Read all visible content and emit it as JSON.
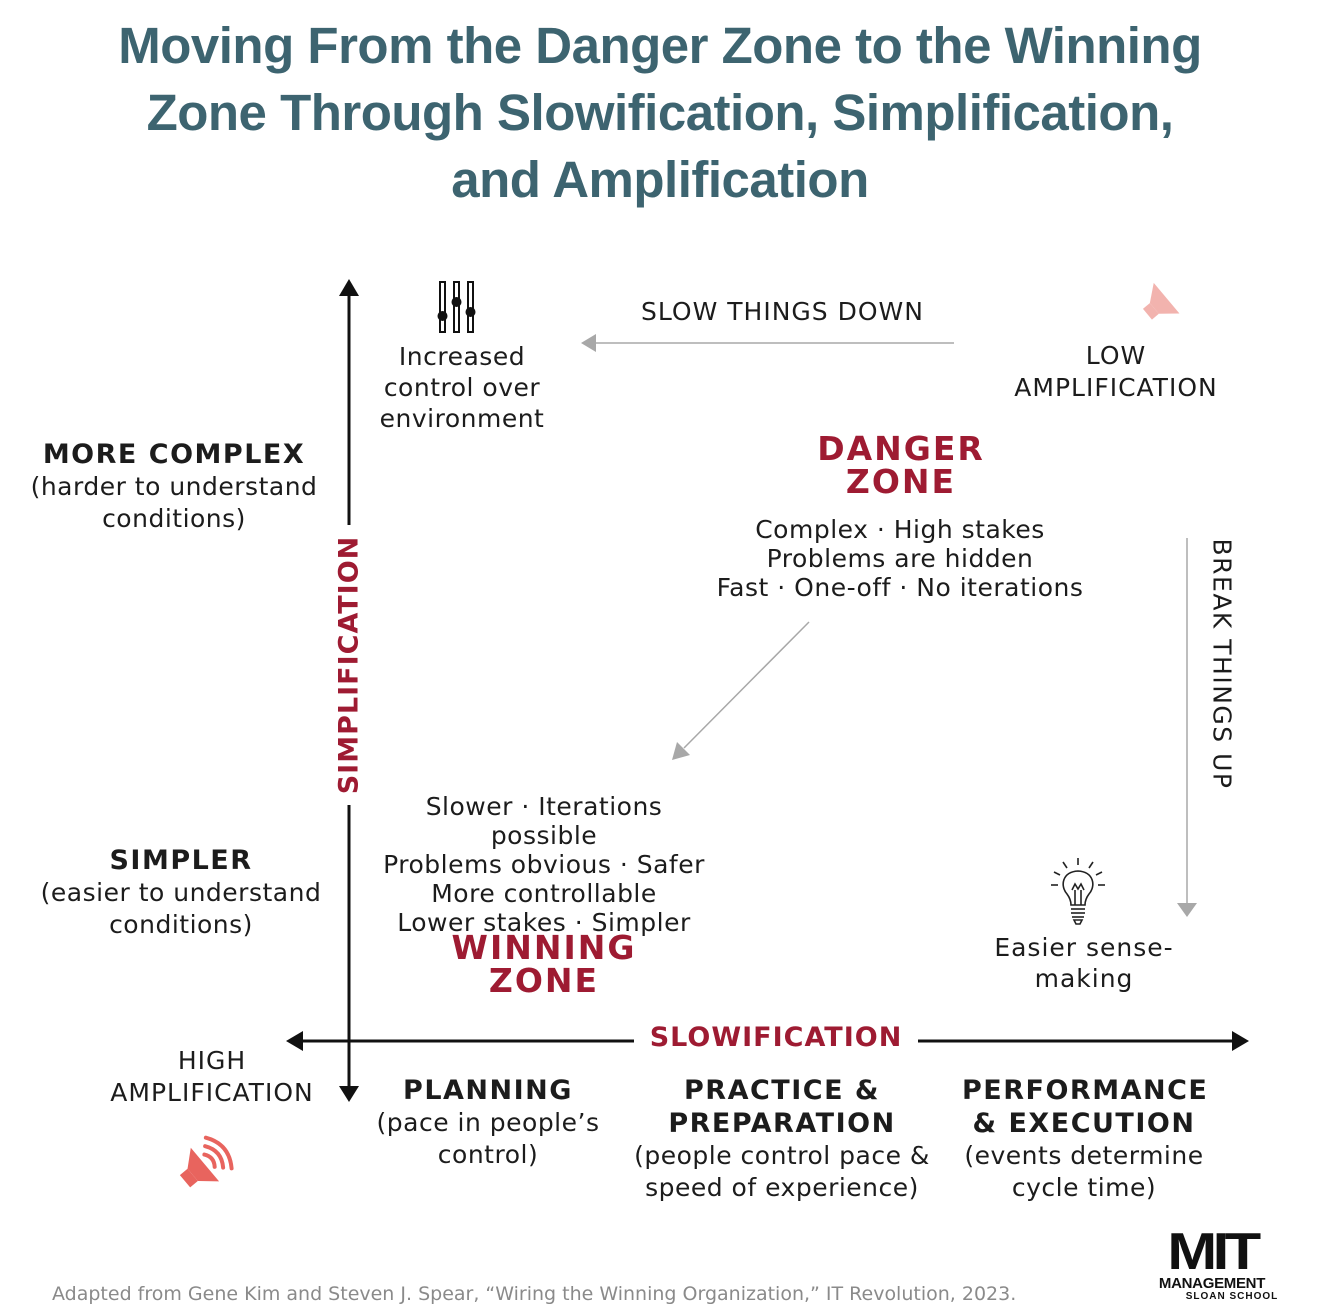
{
  "title": {
    "line1": "Moving From the Danger Zone to the Winning",
    "line2": "Zone Through Slowification, Simplification,",
    "line3": "and Amplification"
  },
  "axes": {
    "vertical_label": "SIMPLIFICATION",
    "horizontal_label": "SLOWIFICATION"
  },
  "complexity": {
    "more": {
      "title": "MORE COMPLEX",
      "desc_line1": "(harder to understand",
      "desc_line2": "conditions)"
    },
    "simpler": {
      "title": "SIMPLER",
      "desc_line1": "(easier to understand",
      "desc_line2": "conditions)"
    }
  },
  "amplification": {
    "high_line1": "HIGH",
    "high_line2": "AMPLIFICATION",
    "low_line1": "LOW",
    "low_line2": "AMPLIFICATION"
  },
  "control": {
    "line1": "Increased",
    "line2": "control over",
    "line3": "environment"
  },
  "slow_down": "SLOW THINGS DOWN",
  "break_up": "BREAK THINGS UP",
  "danger": {
    "line1": "DANGER",
    "line2": "ZONE",
    "desc1": "Complex · High stakes",
    "desc2": "Problems are hidden",
    "desc3": "Fast · One-off · No iterations"
  },
  "winning": {
    "line1": "WINNING",
    "line2": "ZONE",
    "desc1": "Slower · Iterations possible",
    "desc2": "Problems obvious · Safer",
    "desc3": "More controllable",
    "desc4": "Lower stakes · Simpler"
  },
  "sensemaking": {
    "line1": "Easier sense-",
    "line2": "making"
  },
  "phases": [
    {
      "title1": "PLANNING",
      "title2": "",
      "desc1": "(pace in people’s",
      "desc2": "control)"
    },
    {
      "title1": "PRACTICE &",
      "title2": "PREPARATION",
      "desc1": "(people control pace &",
      "desc2": "speed of experience)"
    },
    {
      "title1": "PERFORMANCE",
      "title2": "& EXECUTION",
      "desc1": "(events determine",
      "desc2": "cycle time)"
    }
  ],
  "source": "Adapted from Gene Kim and Steven J. Spear, “Wiring the Winning Organization,” IT Revolution, 2023.",
  "logo": {
    "mark": "MIT",
    "line1": "MANAGEMENT",
    "line2": "SLOAN SCHOOL"
  },
  "colors": {
    "title": "#3d6470",
    "accent": "#9e1b32",
    "speaker": "#e8645e",
    "gray_arrow": "#9a9a9a"
  },
  "icons": {
    "sliders": "sliders-icon",
    "speaker_high": "speaker-loud-icon",
    "speaker_low": "speaker-quiet-icon",
    "bulb": "lightbulb-icon"
  }
}
